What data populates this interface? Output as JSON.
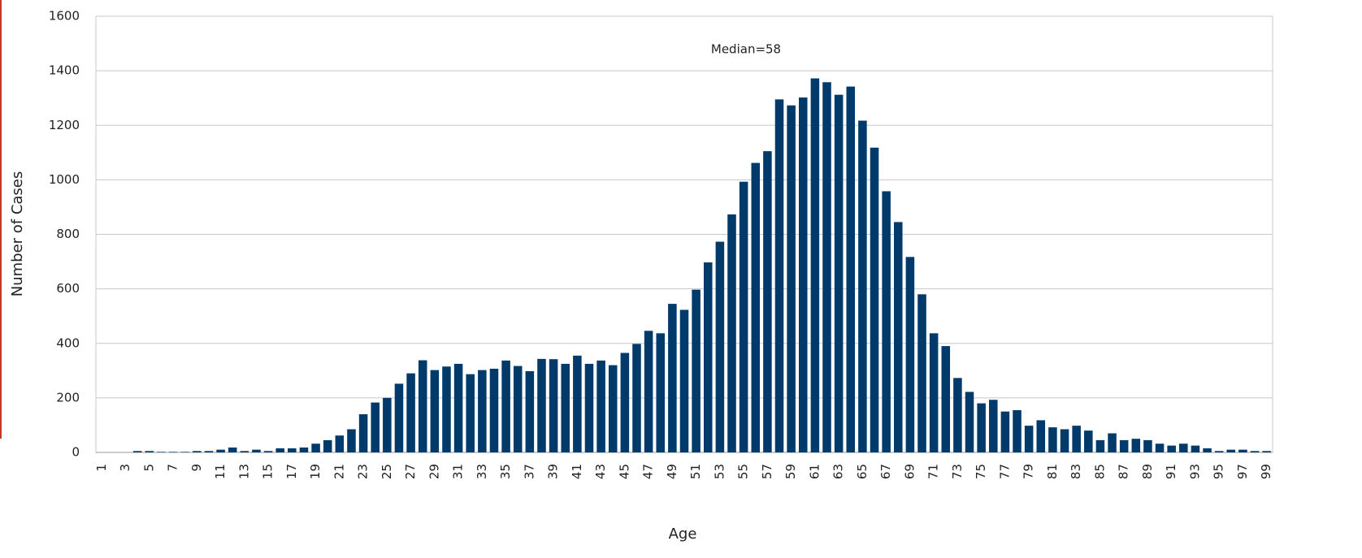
{
  "chart_data": {
    "type": "bar",
    "x_label": "Age",
    "y_label": "Number of Cases",
    "annotation": "Median=58",
    "categories": [
      "1",
      null,
      "3",
      null,
      "5",
      null,
      "7",
      null,
      "9",
      null,
      "11",
      null,
      "13",
      null,
      "15",
      null,
      "17",
      null,
      "19",
      null,
      "21",
      null,
      "23",
      null,
      "25",
      null,
      "27",
      null,
      "29",
      null,
      "31",
      null,
      "33",
      null,
      "35",
      null,
      "37",
      null,
      "39",
      null,
      "41",
      null,
      "43",
      null,
      "45",
      null,
      "47",
      null,
      "49",
      null,
      "51",
      null,
      "53",
      null,
      "55",
      null,
      "57",
      null,
      "59",
      null,
      "61",
      null,
      "63",
      null,
      "65",
      null,
      "67",
      null,
      "69",
      null,
      "71",
      null,
      "73",
      null,
      "75",
      null,
      "77",
      null,
      "79",
      null,
      "81",
      null,
      "83",
      null,
      "85",
      null,
      "87",
      null,
      "89",
      null,
      "91",
      null,
      "93",
      null,
      "95",
      null,
      "97",
      null,
      "99"
    ],
    "values": [
      0,
      0,
      0,
      5,
      5,
      2,
      2,
      2,
      5,
      5,
      10,
      18,
      5,
      10,
      5,
      15,
      15,
      18,
      32,
      45,
      62,
      85,
      140,
      183,
      200,
      252,
      290,
      338,
      302,
      315,
      325,
      287,
      302,
      307,
      337,
      317,
      298,
      343,
      342,
      325,
      355,
      325,
      337,
      320,
      365,
      398,
      446,
      437,
      545,
      523,
      597,
      697,
      773,
      873,
      993,
      1062,
      1105,
      1295,
      1273,
      1302,
      1372,
      1358,
      1312,
      1342,
      1217,
      1118,
      958,
      845,
      717,
      580,
      437,
      390,
      273,
      222,
      180,
      193,
      150,
      155,
      98,
      118,
      92,
      85,
      98,
      80,
      45,
      70,
      45,
      50,
      45,
      32,
      25,
      32,
      25,
      15,
      5,
      10,
      10,
      5,
      5
    ],
    "color": "#003a6b",
    "ylim": [
      0,
      1600
    ],
    "yticks": [
      0,
      200,
      400,
      600,
      800,
      1000,
      1200,
      1400,
      1600
    ],
    "grid": true
  }
}
